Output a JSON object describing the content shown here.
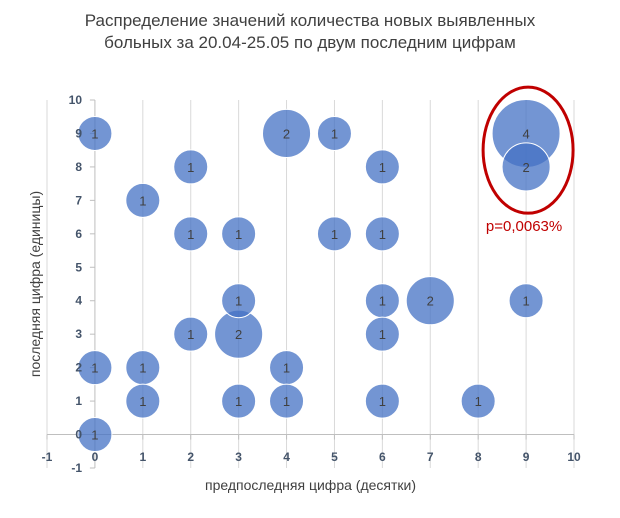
{
  "chart_data": {
    "type": "bubble",
    "title_lines": [
      "Распределение значений количества новых выявленных",
      "больных за 20.04-25.05 по двум последним цифрам"
    ],
    "xlabel": "предпоследняя цифра (десятки)",
    "ylabel": "последняя цифра (единицы)",
    "xlim": [
      -1,
      10
    ],
    "ylim": [
      -1,
      10
    ],
    "xticks": [
      -1,
      0,
      1,
      2,
      3,
      4,
      5,
      6,
      7,
      8,
      9,
      10
    ],
    "yticks": [
      -1,
      0,
      1,
      2,
      3,
      4,
      5,
      6,
      7,
      8,
      9,
      10
    ],
    "grid": "vertical",
    "bubble_color": "#4472c4",
    "highlight_color": "#c00000",
    "points": [
      {
        "x": 0,
        "y": 9,
        "size": 1
      },
      {
        "x": 0,
        "y": 2,
        "size": 1
      },
      {
        "x": 0,
        "y": 0,
        "size": 1
      },
      {
        "x": 1,
        "y": 7,
        "size": 1
      },
      {
        "x": 1,
        "y": 2,
        "size": 1
      },
      {
        "x": 1,
        "y": 1,
        "size": 1
      },
      {
        "x": 2,
        "y": 8,
        "size": 1
      },
      {
        "x": 2,
        "y": 6,
        "size": 1
      },
      {
        "x": 2,
        "y": 3,
        "size": 1
      },
      {
        "x": 3,
        "y": 6,
        "size": 1
      },
      {
        "x": 3,
        "y": 4,
        "size": 1
      },
      {
        "x": 3,
        "y": 3,
        "size": 2
      },
      {
        "x": 3,
        "y": 1,
        "size": 1
      },
      {
        "x": 4,
        "y": 9,
        "size": 2
      },
      {
        "x": 4,
        "y": 2,
        "size": 1
      },
      {
        "x": 4,
        "y": 1,
        "size": 1
      },
      {
        "x": 5,
        "y": 9,
        "size": 1
      },
      {
        "x": 5,
        "y": 6,
        "size": 1
      },
      {
        "x": 6,
        "y": 8,
        "size": 1
      },
      {
        "x": 6,
        "y": 6,
        "size": 1
      },
      {
        "x": 6,
        "y": 4,
        "size": 1
      },
      {
        "x": 6,
        "y": 3,
        "size": 1
      },
      {
        "x": 6,
        "y": 1,
        "size": 1
      },
      {
        "x": 7,
        "y": 4,
        "size": 2
      },
      {
        "x": 8,
        "y": 1,
        "size": 1
      },
      {
        "x": 9,
        "y": 9,
        "size": 4
      },
      {
        "x": 9,
        "y": 8,
        "size": 2
      },
      {
        "x": 9,
        "y": 4,
        "size": 1
      }
    ],
    "annotation": {
      "text": "p=0,0063%",
      "x": 9,
      "y": 8.5
    }
  }
}
